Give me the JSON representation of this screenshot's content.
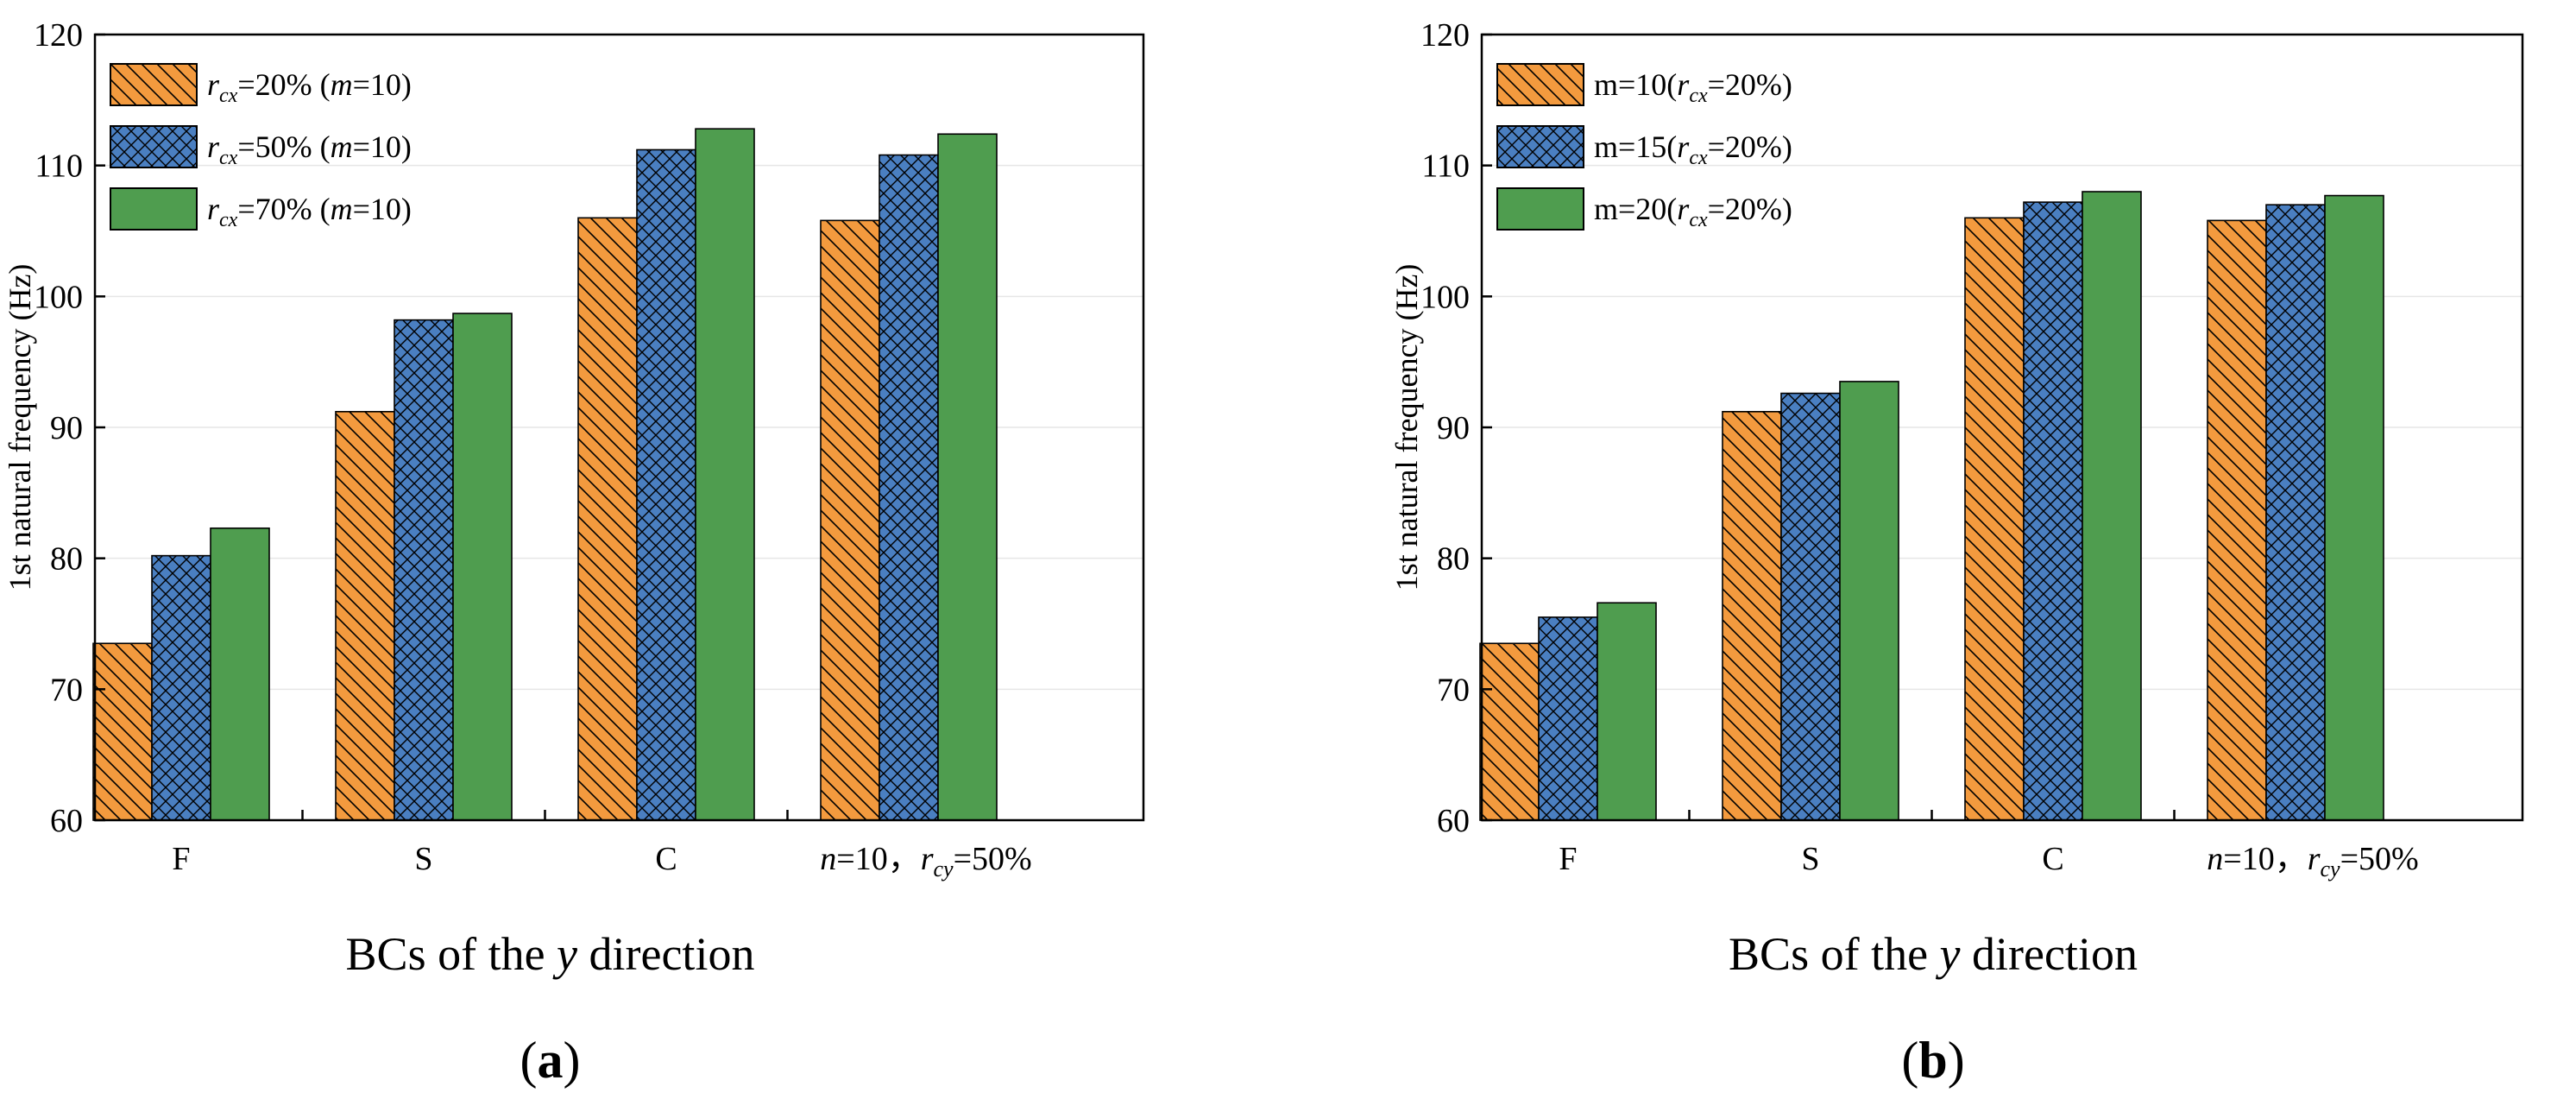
{
  "colors": {
    "orange": "#F39A3E",
    "blue": "#4A7FC1",
    "green": "#4F9D4F",
    "gridline": "#E6E6E6",
    "border": "#000000"
  },
  "chart_data": [
    {
      "type": "bar",
      "panel_label": "a",
      "categories": [
        "F",
        "S",
        "C",
        "n=10，r_cy=50%"
      ],
      "category_labels": {
        "F": "F",
        "S": "S",
        "C": "C",
        "note_n": "n",
        "note_n_value": "=10，",
        "note_r": "r",
        "note_sub": "cy",
        "note_value": "=50%"
      },
      "series": [
        {
          "name": "r_cx=20% (m=10)",
          "legend_r": "r",
          "legend_sub": "cx",
          "legend_rest": "=20% (",
          "legend_m": "m",
          "legend_tail": "=10)",
          "color_key": "orange",
          "pattern": "diag",
          "values": [
            73.5,
            91.2,
            106.0,
            105.8
          ]
        },
        {
          "name": "r_cx=50% (m=10)",
          "legend_r": "r",
          "legend_sub": "cx",
          "legend_rest": "=50% (",
          "legend_m": "m",
          "legend_tail": "=10)",
          "color_key": "blue",
          "pattern": "cross",
          "values": [
            80.2,
            98.2,
            111.2,
            110.8
          ]
        },
        {
          "name": "r_cx=70% (m=10)",
          "legend_r": "r",
          "legend_sub": "cx",
          "legend_rest": "=70% (",
          "legend_m": "m",
          "legend_tail": "=10)",
          "color_key": "green",
          "pattern": "solid",
          "values": [
            82.3,
            98.7,
            112.8,
            112.4
          ]
        }
      ],
      "ylabel": "1st natural frequency (Hz)",
      "xlabel_pre": "BCs of the ",
      "xlabel_var": "y",
      "xlabel_post": " direction",
      "ylim": [
        60,
        120
      ],
      "yticks": [
        60,
        70,
        80,
        90,
        100,
        110,
        120
      ],
      "grid": true,
      "legend": "top-left"
    },
    {
      "type": "bar",
      "panel_label": "b",
      "categories": [
        "F",
        "S",
        "C",
        "n=10，r_cy=50%"
      ],
      "category_labels": {
        "F": "F",
        "S": "S",
        "C": "C",
        "note_n": "n",
        "note_n_value": "=10，",
        "note_r": "r",
        "note_sub": "cy",
        "note_value": "=50%"
      },
      "series": [
        {
          "name": "m=10(r_cx=20%)",
          "legend_pre": "m=10(",
          "legend_r": "r",
          "legend_sub": "cx",
          "legend_tail": "=20%)",
          "color_key": "orange",
          "pattern": "diag",
          "values": [
            73.5,
            91.2,
            106.0,
            105.8
          ]
        },
        {
          "name": "m=15(r_cx=20%)",
          "legend_pre": "m=15(",
          "legend_r": "r",
          "legend_sub": "cx",
          "legend_tail": "=20%)",
          "color_key": "blue",
          "pattern": "cross",
          "values": [
            75.5,
            92.6,
            107.2,
            107.0
          ]
        },
        {
          "name": "m=20(r_cx=20%)",
          "legend_pre": "m=20(",
          "legend_r": "r",
          "legend_sub": "cx",
          "legend_tail": "=20%)",
          "color_key": "green",
          "pattern": "solid",
          "values": [
            76.6,
            93.5,
            108.0,
            107.7
          ]
        }
      ],
      "ylabel": "1st natural frequency (Hz)",
      "xlabel_pre": "BCs of the ",
      "xlabel_var": "y",
      "xlabel_post": " direction",
      "ylim": [
        60,
        120
      ],
      "yticks": [
        60,
        70,
        80,
        90,
        100,
        110,
        120
      ],
      "grid": true,
      "legend": "top-left"
    }
  ]
}
